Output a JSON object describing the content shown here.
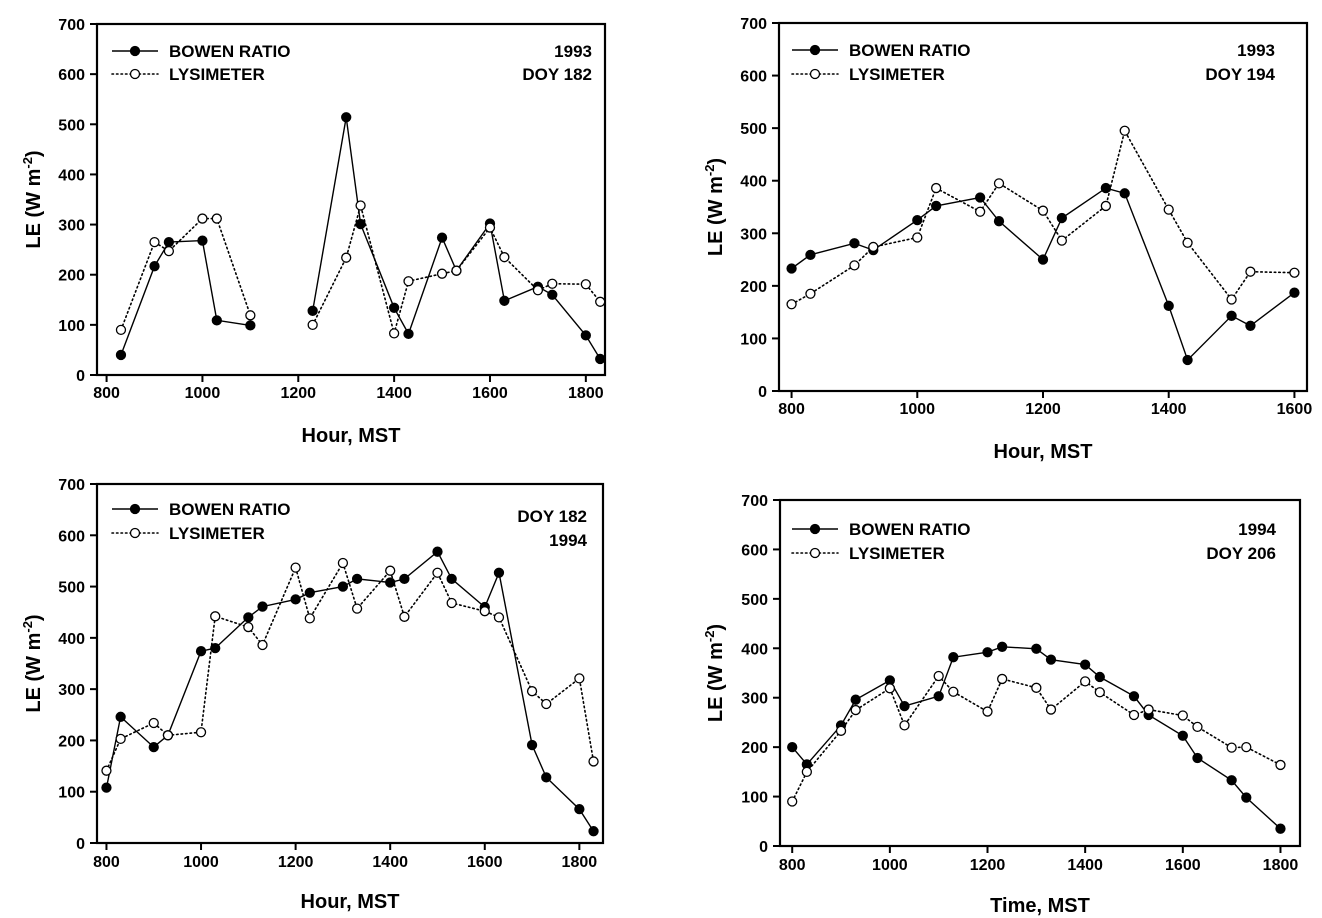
{
  "figure": {
    "chart_data": [
      {
        "type": "line",
        "xlabel": "Hour, MST",
        "ylabel": "LE (W m-2)",
        "ylabel_base": "LE (W m",
        "ylabel_sup": "-2",
        "ylabel_end": ")",
        "xlim": [
          780,
          1840
        ],
        "ylim": [
          0,
          700
        ],
        "xticks": [
          800,
          1000,
          1200,
          1400,
          1600,
          1800
        ],
        "yticks": [
          0,
          100,
          200,
          300,
          400,
          500,
          600,
          700
        ],
        "annotation": [
          "1993",
          "DOY 182"
        ],
        "legend": "top-left",
        "series": [
          {
            "name": "BOWEN RATIO",
            "marker": "filled-circle",
            "line": "solid",
            "color": "#000000",
            "segments": [
              {
                "x": [
                  830,
                  900,
                  930,
                  1000,
                  1030,
                  1100
                ],
                "y": [
                  40,
                  217,
                  265,
                  268,
                  109,
                  99
                ]
              },
              {
                "x": [
                  1230,
                  1300,
                  1330,
                  1400,
                  1430,
                  1500,
                  1530,
                  1600,
                  1630,
                  1700,
                  1730,
                  1800,
                  1830
                ],
                "y": [
                  128,
                  514,
                  301,
                  134,
                  82,
                  274,
                  208,
                  302,
                  148,
                  176,
                  160,
                  79,
                  32
                ]
              }
            ]
          },
          {
            "name": "LYSIMETER",
            "marker": "open-circle",
            "line": "dotted",
            "color": "#000000",
            "segments": [
              {
                "x": [
                  830,
                  900,
                  930,
                  1000,
                  1030,
                  1100
                ],
                "y": [
                  90,
                  265,
                  247,
                  312,
                  312,
                  119
                ]
              },
              {
                "x": [
                  1230,
                  1300,
                  1330,
                  1400,
                  1430,
                  1500,
                  1530,
                  1600,
                  1630,
                  1700,
                  1730,
                  1800,
                  1830
                ],
                "y": [
                  100,
                  234,
                  338,
                  83,
                  187,
                  202,
                  208,
                  294,
                  235,
                  169,
                  182,
                  181,
                  146
                ]
              }
            ]
          }
        ]
      },
      {
        "type": "line",
        "xlabel": "Hour, MST",
        "ylabel": "LE (W m-2)",
        "ylabel_base": "LE (W m",
        "ylabel_sup": "-2",
        "ylabel_end": ")",
        "xlim": [
          780,
          1620
        ],
        "ylim": [
          0,
          700
        ],
        "xticks": [
          800,
          1000,
          1200,
          1400,
          1600
        ],
        "yticks": [
          0,
          100,
          200,
          300,
          400,
          500,
          600,
          700
        ],
        "annotation": [
          "1993",
          "DOY 194"
        ],
        "legend": "top-left",
        "series": [
          {
            "name": "BOWEN RATIO",
            "marker": "filled-circle",
            "line": "solid",
            "color": "#000000",
            "segments": [
              {
                "x": [
                  800,
                  830,
                  900,
                  930,
                  1000,
                  1030,
                  1100,
                  1130,
                  1200,
                  1230,
                  1300,
                  1330,
                  1400,
                  1430,
                  1500,
                  1530,
                  1600
                ],
                "y": [
                  233,
                  259,
                  281,
                  268,
                  325,
                  352,
                  368,
                  323,
                  250,
                  329,
                  386,
                  376,
                  162,
                  59,
                  143,
                  124,
                  187
                ]
              }
            ]
          },
          {
            "name": "LYSIMETER",
            "marker": "open-circle",
            "line": "dotted",
            "color": "#000000",
            "segments": [
              {
                "x": [
                  800,
                  830,
                  900,
                  930,
                  1000,
                  1030,
                  1100,
                  1130,
                  1200,
                  1230,
                  1300,
                  1330,
                  1400,
                  1430,
                  1500,
                  1530,
                  1600
                ],
                "y": [
                  165,
                  185,
                  239,
                  274,
                  292,
                  386,
                  341,
                  395,
                  343,
                  286,
                  352,
                  495,
                  345,
                  282,
                  174,
                  227,
                  225
                ]
              }
            ]
          }
        ]
      },
      {
        "type": "line",
        "xlabel": "Hour, MST",
        "ylabel": "LE (W m-2)",
        "ylabel_base": "LE (W m",
        "ylabel_sup": "-2",
        "ylabel_end": ")",
        "xlim": [
          780,
          1850
        ],
        "ylim": [
          0,
          700
        ],
        "xticks": [
          800,
          1000,
          1200,
          1400,
          1600,
          1800
        ],
        "yticks": [
          0,
          100,
          200,
          300,
          400,
          500,
          600,
          700
        ],
        "annotation": [
          "DOY 182",
          "1994"
        ],
        "legend": "top-left",
        "series": [
          {
            "name": "BOWEN RATIO",
            "marker": "filled-circle",
            "line": "solid",
            "color": "#000000",
            "segments": [
              {
                "x": [
                  800,
                  830,
                  900,
                  930,
                  1000,
                  1030,
                  1100,
                  1130,
                  1200,
                  1230,
                  1300,
                  1330,
                  1400,
                  1430,
                  1500,
                  1530,
                  1600,
                  1630,
                  1700,
                  1730,
                  1800,
                  1830
                ],
                "y": [
                  108,
                  246,
                  187,
                  210,
                  374,
                  380,
                  440,
                  461,
                  475,
                  488,
                  500,
                  515,
                  508,
                  515,
                  568,
                  515,
                  460,
                  527,
                  191,
                  128,
                  66,
                  23
                ]
              }
            ]
          },
          {
            "name": "LYSIMETER",
            "marker": "open-circle",
            "line": "dotted",
            "color": "#000000",
            "segments": [
              {
                "x": [
                  800,
                  830,
                  900,
                  930,
                  1000,
                  1030,
                  1100,
                  1130,
                  1200,
                  1230,
                  1300,
                  1330,
                  1400,
                  1430,
                  1500,
                  1530,
                  1600,
                  1630,
                  1700,
                  1730,
                  1800,
                  1830
                ],
                "y": [
                  141,
                  203,
                  234,
                  210,
                  216,
                  442,
                  421,
                  386,
                  537,
                  438,
                  546,
                  457,
                  531,
                  441,
                  527,
                  468,
                  452,
                  440,
                  296,
                  271,
                  321,
                  159
                ]
              }
            ]
          }
        ]
      },
      {
        "type": "line",
        "xlabel": "Time, MST",
        "ylabel": "LE (W m-2)",
        "ylabel_base": "LE (W m",
        "ylabel_sup": "-2",
        "ylabel_end": ")",
        "xlim": [
          775,
          1840
        ],
        "ylim": [
          0,
          700
        ],
        "xticks": [
          800,
          1000,
          1200,
          1400,
          1600,
          1800
        ],
        "yticks": [
          0,
          100,
          200,
          300,
          400,
          500,
          600,
          700
        ],
        "annotation": [
          "1994",
          "DOY 206"
        ],
        "legend": "top-left",
        "series": [
          {
            "name": "BOWEN RATIO",
            "marker": "filled-circle",
            "line": "solid",
            "color": "#000000",
            "segments": [
              {
                "x": [
                  800,
                  830,
                  900,
                  930,
                  1000,
                  1030,
                  1100,
                  1130,
                  1200,
                  1230,
                  1300,
                  1330,
                  1400,
                  1430,
                  1500,
                  1530,
                  1600,
                  1630,
                  1700,
                  1730,
                  1800
                ],
                "y": [
                  200,
                  165,
                  244,
                  296,
                  335,
                  283,
                  303,
                  382,
                  392,
                  403,
                  399,
                  377,
                  367,
                  342,
                  303,
                  265,
                  223,
                  178,
                  133,
                  98,
                  35
                ]
              }
            ]
          },
          {
            "name": "LYSIMETER",
            "marker": "open-circle",
            "line": "dotted",
            "color": "#000000",
            "segments": [
              {
                "x": [
                  800,
                  830,
                  900,
                  930,
                  1000,
                  1030,
                  1100,
                  1130,
                  1200,
                  1230,
                  1300,
                  1330,
                  1400,
                  1430,
                  1500,
                  1530,
                  1600,
                  1630,
                  1700,
                  1730,
                  1800
                ],
                "y": [
                  90,
                  150,
                  233,
                  275,
                  319,
                  244,
                  344,
                  312,
                  272,
                  338,
                  320,
                  276,
                  333,
                  311,
                  265,
                  276,
                  264,
                  241,
                  199,
                  200,
                  164
                ]
              }
            ]
          }
        ]
      }
    ]
  }
}
